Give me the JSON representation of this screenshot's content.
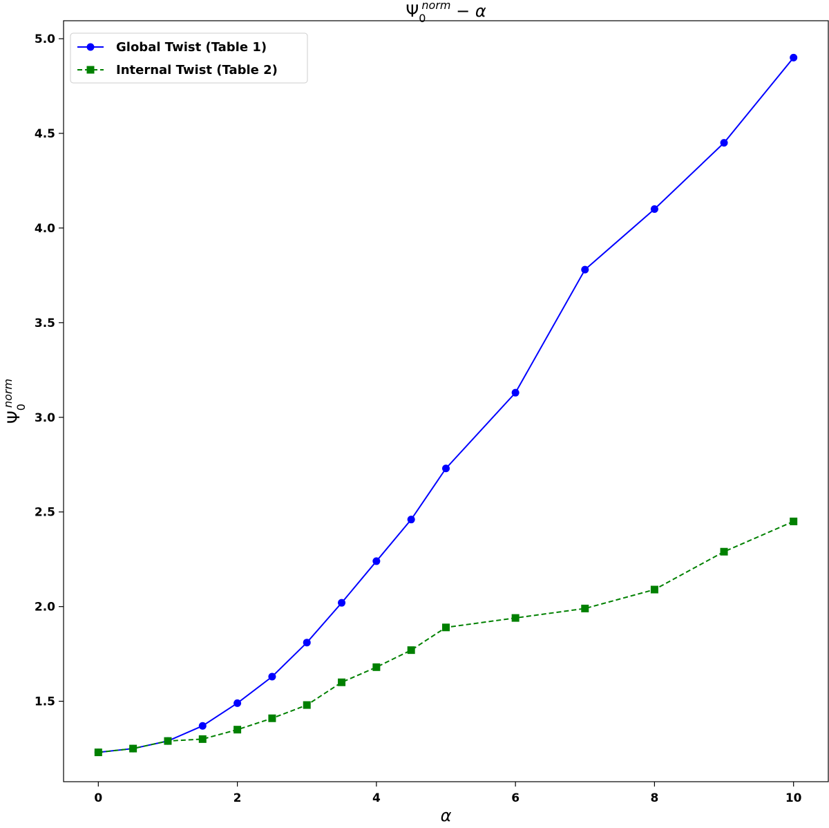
{
  "chart_data": {
    "type": "line",
    "title": {
      "base": "Ψ",
      "subscript": "0",
      "superscript": "norm",
      "suffix": " − α"
    },
    "xlabel": "α",
    "ylabel": {
      "base": "Ψ",
      "subscript": "0",
      "superscript": "norm"
    },
    "xlim": [
      -0.5,
      10.5
    ],
    "ylim": [
      1.075,
      5.095
    ],
    "xticks": [
      0,
      2,
      4,
      6,
      8,
      10
    ],
    "xtick_labels": [
      "0",
      "2",
      "4",
      "6",
      "8",
      "10"
    ],
    "yticks": [
      1.5,
      2.0,
      2.5,
      3.0,
      3.5,
      4.0,
      4.5,
      5.0
    ],
    "ytick_labels": [
      "1.5",
      "2.0",
      "2.5",
      "3.0",
      "3.5",
      "4.0",
      "4.5",
      "5.0"
    ],
    "grid": false,
    "legend_position": "top-left",
    "series": [
      {
        "name": "Global Twist (Table 1)",
        "color": "#0000ff",
        "line_style": "solid",
        "marker": "circle",
        "x": [
          0,
          0.5,
          1,
          1.5,
          2,
          2.5,
          3,
          3.5,
          4,
          4.5,
          5,
          6,
          7,
          8,
          9,
          10
        ],
        "y": [
          1.23,
          1.25,
          1.29,
          1.37,
          1.49,
          1.63,
          1.81,
          2.02,
          2.24,
          2.46,
          2.73,
          3.13,
          3.78,
          4.1,
          4.45,
          4.9
        ]
      },
      {
        "name": "Internal Twist (Table 2)",
        "color": "#008000",
        "line_style": "dashed",
        "marker": "square",
        "x": [
          0,
          0.5,
          1,
          1.5,
          2,
          2.5,
          3,
          3.5,
          4,
          4.5,
          5,
          6,
          7,
          8,
          9,
          10
        ],
        "y": [
          1.23,
          1.25,
          1.29,
          1.3,
          1.35,
          1.41,
          1.48,
          1.6,
          1.68,
          1.77,
          1.89,
          1.94,
          1.99,
          2.09,
          2.29,
          2.45
        ]
      }
    ]
  }
}
